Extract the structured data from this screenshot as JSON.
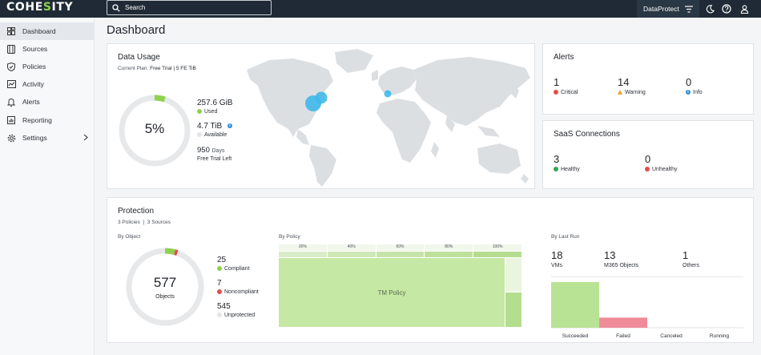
{
  "topbar": {
    "logo_pre": "COHE",
    "logo_accent": "S",
    "logo_post": "ITY",
    "search_placeholder": "Search",
    "context": "DataProtect"
  },
  "sidebar": {
    "items": [
      {
        "label": "Dashboard",
        "icon": "dashboard-icon"
      },
      {
        "label": "Sources",
        "icon": "sources-icon"
      },
      {
        "label": "Policies",
        "icon": "shield-icon"
      },
      {
        "label": "Activity",
        "icon": "activity-icon"
      },
      {
        "label": "Alerts",
        "icon": "bell-icon"
      },
      {
        "label": "Reporting",
        "icon": "chart-icon"
      },
      {
        "label": "Settings",
        "icon": "gear-icon"
      }
    ]
  },
  "page": {
    "title": "Dashboard"
  },
  "data_usage": {
    "title": "Data Usage",
    "plan_label": "Current Plan:",
    "plan_value": "Free Trial | 5 FE TiB",
    "percent": "5%",
    "used_fraction": 0.05,
    "used_value": "257.6 GiB",
    "used_label": "Used",
    "available_value": "4.7 TiB",
    "available_label": "Available",
    "days_value": "950",
    "days_unit": "Days",
    "days_label": "Free Trial Left"
  },
  "alerts": {
    "title": "Alerts",
    "critical": {
      "count": "1",
      "label": "Critical"
    },
    "warning": {
      "count": "14",
      "label": "Warning"
    },
    "info": {
      "count": "0",
      "label": "Info"
    }
  },
  "saas": {
    "title": "SaaS Connections",
    "healthy": {
      "count": "3",
      "label": "Healthy"
    },
    "unhealthy": {
      "count": "0",
      "label": "Unhealthy"
    }
  },
  "protection": {
    "title": "Protection",
    "policies": "3 Policies",
    "separator": "|",
    "sources": "3 Sources",
    "by_object": {
      "title": "By Object",
      "total": "577",
      "total_label": "Objects",
      "compliant": {
        "count": "25",
        "label": "Compliant"
      },
      "noncompliant": {
        "count": "7",
        "label": "Noncompliant"
      },
      "unprotected": {
        "count": "545",
        "label": "Unprotected"
      }
    },
    "by_policy": {
      "title": "By Policy",
      "ticks": [
        "20%",
        "40%",
        "60%",
        "80%",
        "100%"
      ],
      "policy_label": "TM Policy"
    },
    "by_last_run": {
      "title": "By Last Run",
      "vms": {
        "count": "18",
        "label": "VMs"
      },
      "m365": {
        "count": "13",
        "label": "M365 Objects"
      },
      "others": {
        "count": "1",
        "label": "Others"
      }
    }
  },
  "colors": {
    "green": "#8fd14f",
    "red": "#e84a4a",
    "grey_ring": "#e6e8ea",
    "blue": "#3fb8ea",
    "topbar": "#1f2a36"
  },
  "chart_data": {
    "type": "bar",
    "categories": [
      "Succeeded",
      "Failed",
      "Canceled",
      "Running"
    ],
    "values": [
      18,
      4,
      0,
      0
    ],
    "ylim": [
      0,
      18
    ]
  }
}
